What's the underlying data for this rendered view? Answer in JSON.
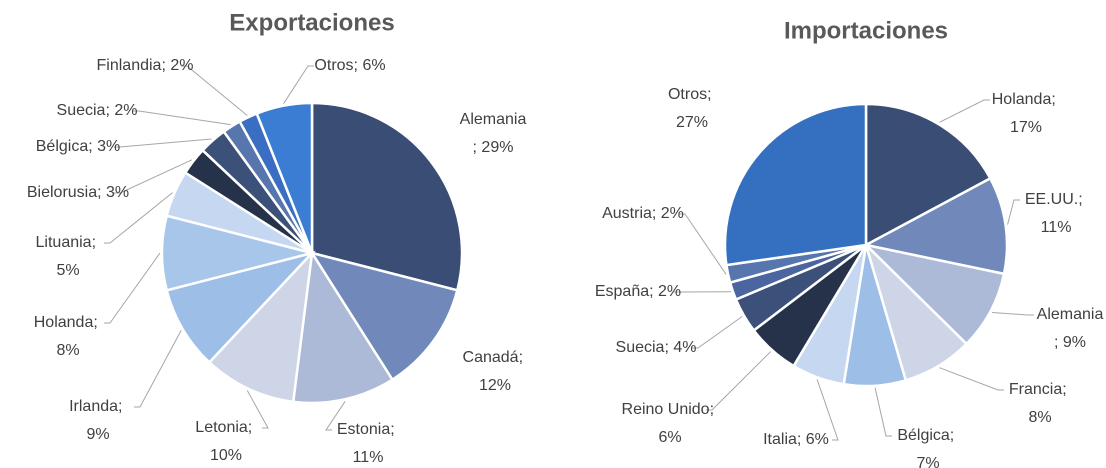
{
  "chart_data": [
    {
      "type": "pie",
      "title": "Exportaciones",
      "label_separator": "; ",
      "categories": [
        "Alemania",
        "Canadá",
        "Estonia",
        "Letonia",
        "Irlanda",
        "Holanda",
        "Lituania",
        "Bielorusia",
        "Bélgica",
        "Suecia",
        "Finlandia",
        "Otros"
      ],
      "values": [
        29,
        12,
        11,
        10,
        9,
        8,
        5,
        3,
        3,
        2,
        2,
        6
      ],
      "value_labels": [
        "29%",
        "12%",
        "11%",
        "10%",
        "9%",
        "8%",
        "5%",
        "3%",
        "3%",
        "2%",
        "2%",
        "6%"
      ],
      "colors": [
        "#3a4d74",
        "#7189ba",
        "#adbad7",
        "#cdd5e7",
        "#9dbee7",
        "#a8c6ea",
        "#c6d8f1",
        "#25324a",
        "#3c5179",
        "#5876ae",
        "#3a6ec2",
        "#3a7dd2"
      ]
    },
    {
      "type": "pie",
      "title": "Importaciones",
      "label_separator": "; ",
      "categories": [
        "Holanda",
        "EE.UU.",
        "Alemania",
        "Francia",
        "Bélgica",
        "Italia",
        "Reino Unido",
        "Suecia",
        "España",
        "Austria",
        "Otros"
      ],
      "values": [
        17,
        11,
        9,
        8,
        7,
        6,
        6,
        4,
        2,
        2,
        27
      ],
      "value_labels": [
        "17%",
        "11%",
        "9%",
        "8%",
        "7%",
        "6%",
        "6%",
        "4%",
        "2%",
        "2%",
        "27%"
      ],
      "colors": [
        "#3a4d74",
        "#7189ba",
        "#adbad7",
        "#cdd5e7",
        "#9dbee7",
        "#c6d8f1",
        "#25324a",
        "#3c5179",
        "#4b65a0",
        "#5876ae",
        "#3570c0"
      ]
    }
  ]
}
